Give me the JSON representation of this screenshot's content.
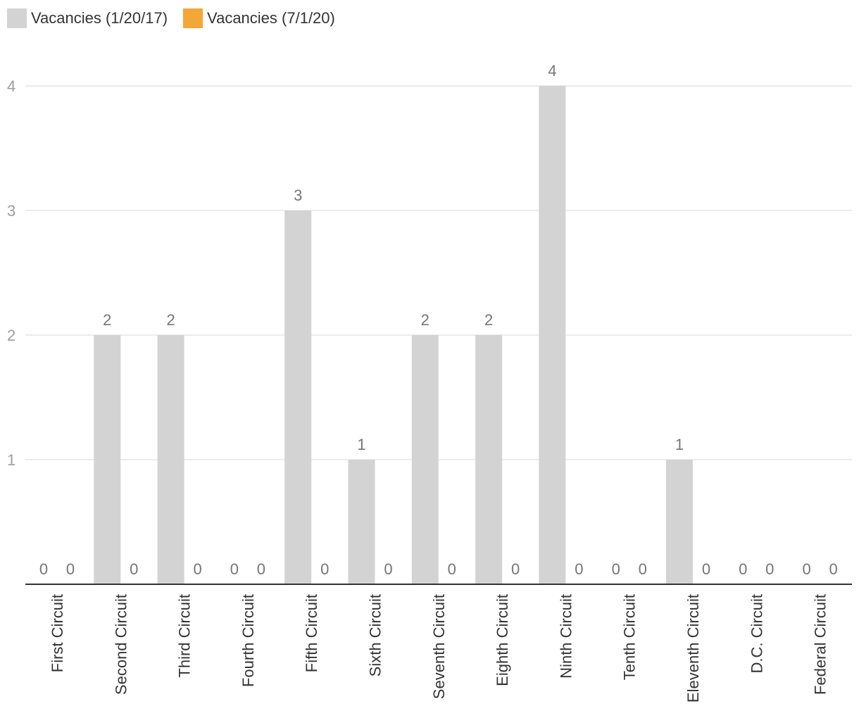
{
  "legend": {
    "series1_label": "Vacancies (1/20/17)",
    "series2_label": "Vacancies (7/1/20)"
  },
  "colors": {
    "series1": "#d3d3d3",
    "series2": "#f4a636",
    "gridline": "#e5e5e5",
    "axis": "#333333"
  },
  "chart_data": {
    "type": "bar",
    "categories": [
      "First Circuit",
      "Second Circuit",
      "Third Circuit",
      "Fourth Circuit",
      "Fifth Circuit",
      "Sixth Circuit",
      "Seventh Circuit",
      "Eighth Circuit",
      "Ninth Circuit",
      "Tenth Circuit",
      "Eleventh Circuit",
      "D.C. Circuit",
      "Federal Circuit"
    ],
    "series": [
      {
        "name": "Vacancies (1/20/17)",
        "values": [
          0,
          2,
          2,
          0,
          3,
          1,
          2,
          2,
          4,
          0,
          1,
          0,
          0
        ]
      },
      {
        "name": "Vacancies (7/1/20)",
        "values": [
          0,
          0,
          0,
          0,
          0,
          0,
          0,
          0,
          0,
          0,
          0,
          0,
          0
        ]
      }
    ],
    "yticks": [
      1,
      2,
      3,
      4
    ],
    "ylim": [
      0,
      4
    ],
    "grid": true,
    "legend_position": "top-left",
    "data_labels": true
  }
}
